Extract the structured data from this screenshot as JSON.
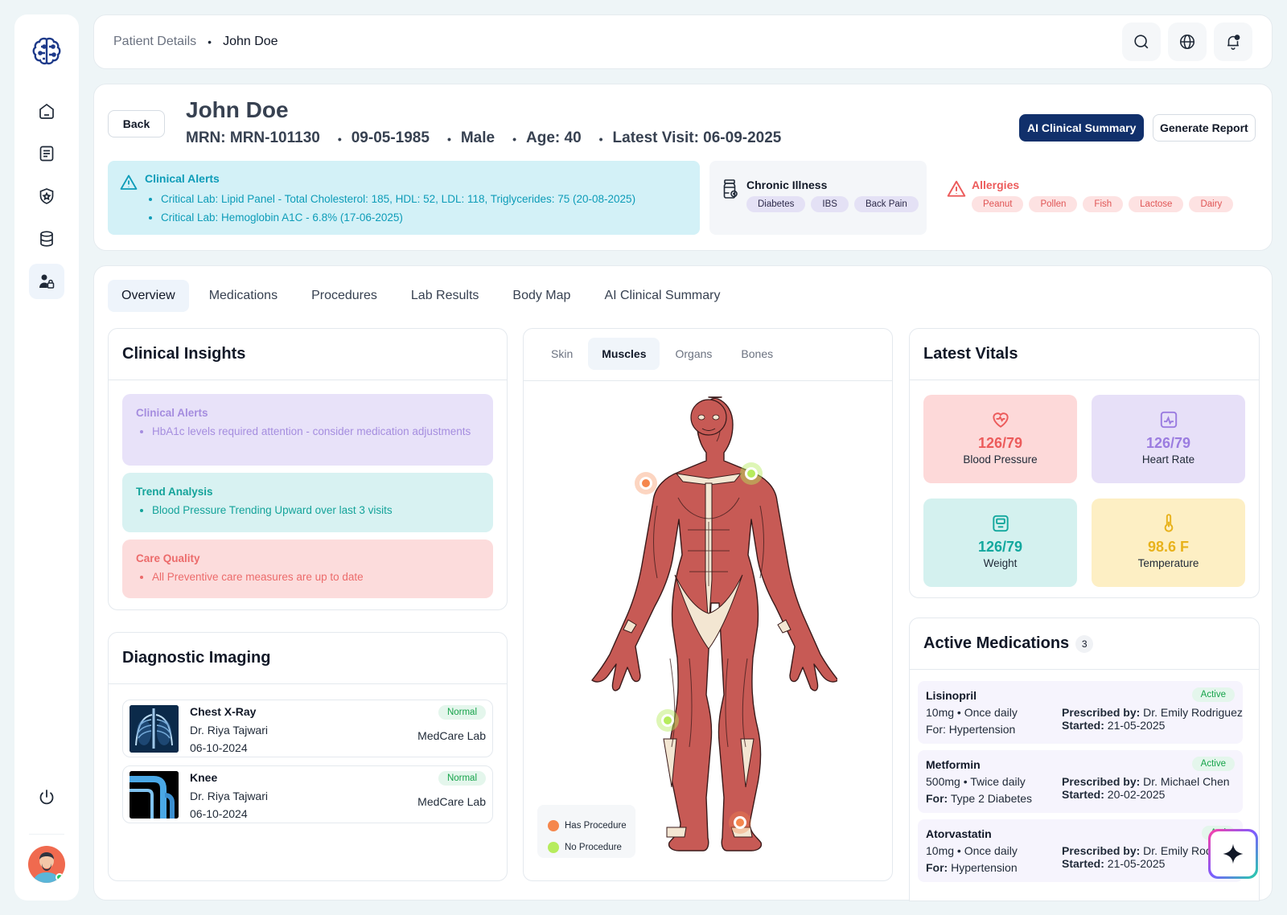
{
  "nav": {
    "items": [
      {
        "icon": "home-icon"
      },
      {
        "icon": "document-icon"
      },
      {
        "icon": "shield-icon"
      },
      {
        "icon": "database-icon"
      },
      {
        "icon": "user-lock-icon",
        "active": true
      }
    ]
  },
  "breadcrumb": {
    "parent": "Patient Details",
    "separator": "•",
    "current": "John Doe"
  },
  "patient": {
    "back_label": "Back",
    "name": "John Doe",
    "mrn": "MRN: MRN-101130",
    "dob": "09-05-1985",
    "gender": "Male",
    "age": "Age: 40",
    "latest_visit": "Latest Visit: 06-09-2025",
    "bullet": "•",
    "ai_summary_label": "AI Clinical Summary",
    "generate_report_label": "Generate Report",
    "clinical_alerts": {
      "title": "Clinical Alerts",
      "items": [
        "Critical Lab: Lipid Panel - Total Cholesterol: 185, HDL: 52, LDL: 118, Triglycerides: 75 (20-08-2025)",
        "Critical Lab: Hemoglobin A1C - 6.8% (17-06-2025)"
      ]
    },
    "chronic_illness": {
      "title": "Chronic Illness",
      "items": [
        "Diabetes",
        "IBS",
        "Back Pain"
      ]
    },
    "allergies": {
      "title": "Allergies",
      "items": [
        "Peanut",
        "Pollen",
        "Fish",
        "Lactose",
        "Dairy"
      ]
    }
  },
  "tabs": [
    "Overview",
    "Medications",
    "Procedures",
    "Lab Results",
    "Body Map",
    "AI Clinical Summary"
  ],
  "insights": {
    "title": "Clinical Insights",
    "alerts": {
      "title": "Clinical Alerts",
      "text": "HbA1c levels required attention - consider  medication adjustments"
    },
    "trend": {
      "title": "Trend Analysis",
      "text": "Blood Pressure Trending Upward over last 3 visits"
    },
    "care": {
      "title": "Care Quality",
      "text": "All Preventive care measures are up to date"
    }
  },
  "imaging": {
    "title": "Diagnostic Imaging",
    "items": [
      {
        "name": "Chest X-Ray",
        "doctor": "Dr. Riya Tajwari",
        "date": "06-10-2024",
        "status": "Normal",
        "lab": "MedCare Lab"
      },
      {
        "name": "Knee",
        "doctor": "Dr. Riya Tajwari",
        "date": "06-10-2024",
        "status": "Normal",
        "lab": "MedCare Lab"
      }
    ]
  },
  "body_map": {
    "tabs": [
      "Skin",
      "Muscles",
      "Organs",
      "Bones"
    ],
    "active_tab": "Muscles",
    "legend": {
      "has": "Has Procedure",
      "none": "No Procedure"
    },
    "colors": {
      "has": "#f5874d",
      "none": "#b6ec5d"
    }
  },
  "vitals": {
    "title": "Latest Vitals",
    "items": [
      {
        "value": "126/79",
        "label": "Blood Pressure",
        "icon": "heart-pulse-icon",
        "color": "#ec5b5b",
        "bg": "#fdd9d9"
      },
      {
        "value": "126/79",
        "label": "Heart Rate",
        "icon": "heart-rate-chart-icon",
        "color": "#9b7ce0",
        "bg": "#e7e0f8"
      },
      {
        "value": "126/79",
        "label": "Weight",
        "icon": "scale-icon",
        "color": "#13a89e",
        "bg": "#d4f1ef"
      },
      {
        "value": "98.6 F",
        "label": "Temperature",
        "icon": "thermometer-icon",
        "color": "#e8b21c",
        "bg": "#fdefc4"
      }
    ]
  },
  "medications": {
    "title": "Active Medications",
    "count": "3",
    "prescribed_label": "Prescribed by:",
    "started_label": "Started:",
    "items": [
      {
        "name": "Lisinopril",
        "dose": "10mg • Once daily",
        "for_label": "",
        "for": "For: Hypertension",
        "prescriber": "Dr. Emily Rodriguez",
        "started": "21-05-2025",
        "status": "Active"
      },
      {
        "name": "Metformin",
        "dose": "500mg • Twice daily",
        "for_label": "For:",
        "for": "Type 2 Diabetes",
        "prescriber": "Dr. Michael Chen",
        "started": "20-02-2025",
        "status": "Active"
      },
      {
        "name": "Atorvastatin",
        "dose": "10mg • Once daily",
        "for_label": "For:",
        "for": "Hypertension",
        "prescriber": "Dr. Emily Rod",
        "started": "21-05-2025",
        "status": "Acti"
      }
    ]
  }
}
